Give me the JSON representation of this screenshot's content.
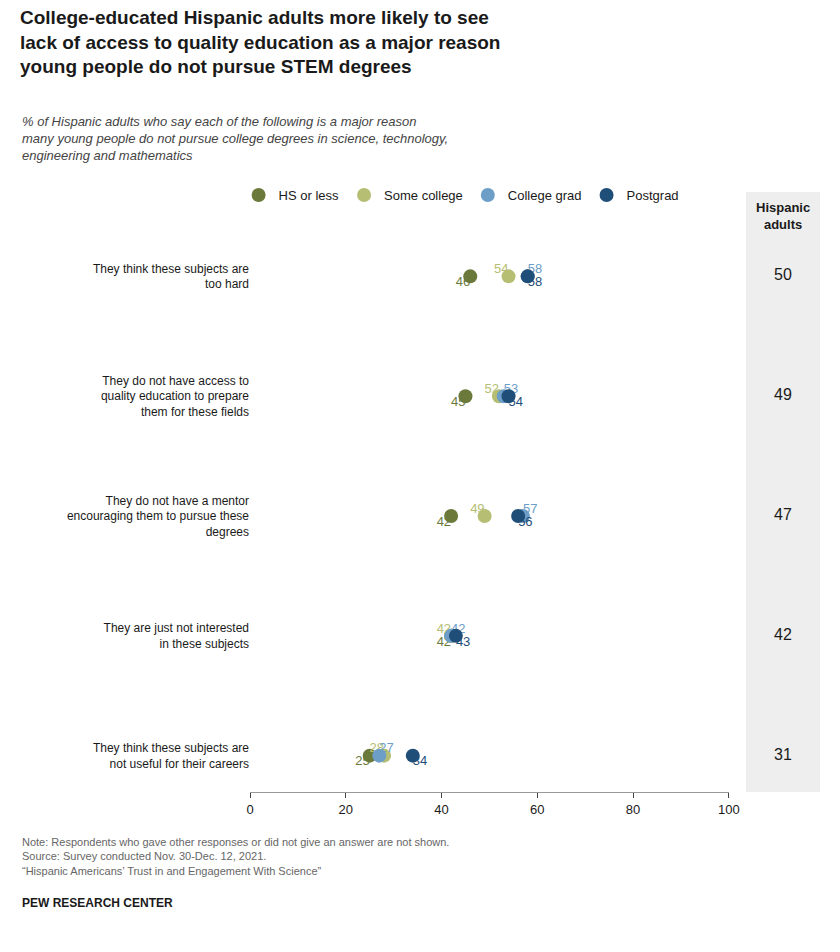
{
  "chart_data": {
    "type": "dot",
    "title": "College-educated Hispanic adults more likely to see\nlack of access to quality education as a major reason\nyoung people do not pursue STEM degrees",
    "subtitle": "% of Hispanic adults who say each of the following is a major reason\nmany young people do not pursue college degrees in science, technology,\nengineering and mathematics",
    "categories": [
      "They think these subjects are\ntoo hard",
      "They do not have access to\nquality education to prepare\nthem for these fields",
      "They do not have a mentor\nencouraging them to pursue these\ndegrees",
      "They are just not interested\nin these subjects",
      "They think these subjects are\nnot useful for their careers"
    ],
    "series": [
      {
        "name": "HS or less",
        "color": "#6b7a3a",
        "values": [
          46,
          45,
          42,
          42,
          25
        ]
      },
      {
        "name": "Some college",
        "color": "#b5be72",
        "values": [
          54,
          52,
          49,
          42,
          28
        ]
      },
      {
        "name": "College grad",
        "color": "#6c9ec8",
        "values": [
          58,
          53,
          57,
          42,
          27
        ]
      },
      {
        "name": "Postgrad",
        "color": "#1f4e79",
        "values": [
          58,
          54,
          56,
          43,
          34
        ]
      }
    ],
    "totals": {
      "name": "Hispanic\nadults",
      "values": [
        50,
        49,
        47,
        42,
        31
      ]
    },
    "xlim": [
      0,
      100
    ],
    "xticks": [
      0,
      20,
      40,
      60,
      80,
      100
    ],
    "grid": false,
    "legend": "top",
    "data_labels": true,
    "notes": [
      "Note: Respondents who gave other responses or did not give an answer are not shown.",
      "Source: Survey conducted Nov. 30-Dec. 12, 2021.",
      "“Hispanic Americans’ Trust in and Engagement With Science”"
    ],
    "source": "PEW RESEARCH CENTER"
  }
}
